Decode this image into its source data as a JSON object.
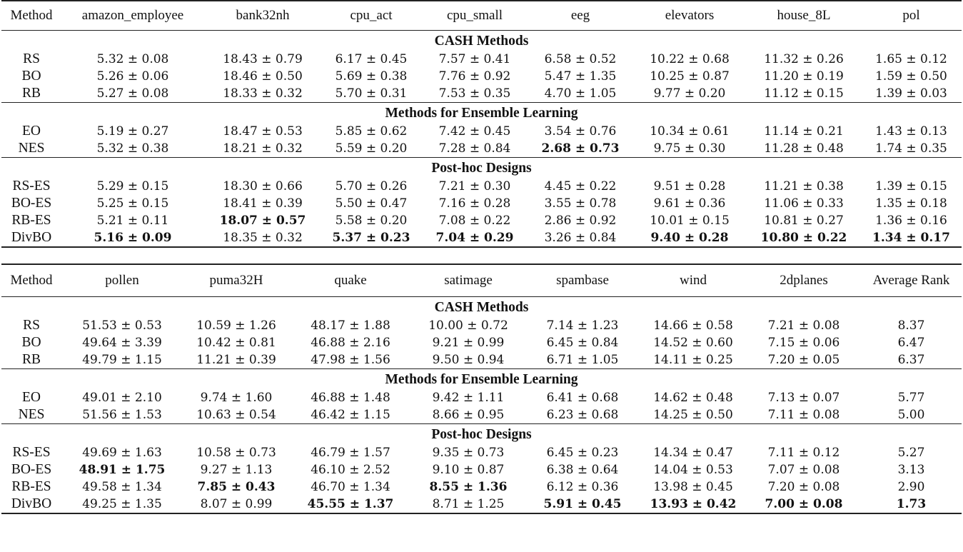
{
  "tables": [
    {
      "columns": [
        "Method",
        "amazon_employee",
        "bank32nh",
        "cpu_act",
        "cpu_small",
        "eeg",
        "elevators",
        "house_8L",
        "pol"
      ],
      "sections": [
        {
          "title": "CASH Methods",
          "rows": [
            {
              "method": "RS",
              "cells": [
                {
                  "v": "5.32 ± 0.08"
                },
                {
                  "v": "18.43 ± 0.79"
                },
                {
                  "v": "6.17 ± 0.45"
                },
                {
                  "v": "7.57 ± 0.41"
                },
                {
                  "v": "6.58 ± 0.52"
                },
                {
                  "v": "10.22 ± 0.68"
                },
                {
                  "v": "11.32 ± 0.26"
                },
                {
                  "v": "1.65 ± 0.12"
                }
              ]
            },
            {
              "method": "BO",
              "cells": [
                {
                  "v": "5.26 ± 0.06"
                },
                {
                  "v": "18.46 ± 0.50"
                },
                {
                  "v": "5.69 ± 0.38"
                },
                {
                  "v": "7.76 ± 0.92"
                },
                {
                  "v": "5.47 ± 1.35"
                },
                {
                  "v": "10.25 ± 0.87"
                },
                {
                  "v": "11.20 ± 0.19"
                },
                {
                  "v": "1.59 ± 0.50"
                }
              ]
            },
            {
              "method": "RB",
              "cells": [
                {
                  "v": "5.27 ± 0.08"
                },
                {
                  "v": "18.33 ± 0.32"
                },
                {
                  "v": "5.70 ± 0.31"
                },
                {
                  "v": "7.53 ± 0.35"
                },
                {
                  "v": "4.70 ± 1.05"
                },
                {
                  "v": "9.77 ± 0.20"
                },
                {
                  "v": "11.12 ± 0.15"
                },
                {
                  "v": "1.39 ± 0.03"
                }
              ]
            }
          ]
        },
        {
          "title": "Methods for Ensemble Learning",
          "rows": [
            {
              "method": "EO",
              "cells": [
                {
                  "v": "5.19 ± 0.27"
                },
                {
                  "v": "18.47 ± 0.53"
                },
                {
                  "v": "5.85 ± 0.62"
                },
                {
                  "v": "7.42 ± 0.45"
                },
                {
                  "v": "3.54 ± 0.76"
                },
                {
                  "v": "10.34 ± 0.61"
                },
                {
                  "v": "11.14 ± 0.21"
                },
                {
                  "v": "1.43 ± 0.13"
                }
              ]
            },
            {
              "method": "NES",
              "cells": [
                {
                  "v": "5.32 ± 0.38"
                },
                {
                  "v": "18.21 ± 0.32"
                },
                {
                  "v": "5.59 ± 0.20"
                },
                {
                  "v": "7.28 ± 0.84"
                },
                {
                  "v": "2.68 ± 0.73",
                  "bold": true
                },
                {
                  "v": "9.75 ± 0.30"
                },
                {
                  "v": "11.28 ± 0.48"
                },
                {
                  "v": "1.74 ± 0.35"
                }
              ]
            }
          ]
        },
        {
          "title": "Post-hoc Designs",
          "rows": [
            {
              "method": "RS-ES",
              "cells": [
                {
                  "v": "5.29 ± 0.15"
                },
                {
                  "v": "18.30 ± 0.66"
                },
                {
                  "v": "5.70 ± 0.26"
                },
                {
                  "v": "7.21 ± 0.30"
                },
                {
                  "v": "4.45 ± 0.22"
                },
                {
                  "v": "9.51 ± 0.28"
                },
                {
                  "v": "11.21 ± 0.38"
                },
                {
                  "v": "1.39 ± 0.15"
                }
              ]
            },
            {
              "method": "BO-ES",
              "cells": [
                {
                  "v": "5.25 ± 0.15"
                },
                {
                  "v": "18.41 ± 0.39"
                },
                {
                  "v": "5.50 ± 0.47"
                },
                {
                  "v": "7.16 ± 0.28"
                },
                {
                  "v": "3.55 ± 0.78"
                },
                {
                  "v": "9.61 ± 0.36"
                },
                {
                  "v": "11.06 ± 0.33"
                },
                {
                  "v": "1.35 ± 0.18"
                }
              ]
            },
            {
              "method": "RB-ES",
              "cells": [
                {
                  "v": "5.21 ± 0.11"
                },
                {
                  "v": "18.07 ± 0.57",
                  "bold": true
                },
                {
                  "v": "5.58 ± 0.20"
                },
                {
                  "v": "7.08 ± 0.22"
                },
                {
                  "v": "2.86 ± 0.92"
                },
                {
                  "v": "10.01 ± 0.15"
                },
                {
                  "v": "10.81 ± 0.27"
                },
                {
                  "v": "1.36 ± 0.16"
                }
              ]
            },
            {
              "method": "DivBO",
              "cells": [
                {
                  "v": "5.16 ± 0.09",
                  "bold": true
                },
                {
                  "v": "18.35 ± 0.32"
                },
                {
                  "v": "5.37 ± 0.23",
                  "bold": true
                },
                {
                  "v": "7.04 ± 0.29",
                  "bold": true
                },
                {
                  "v": "3.26 ± 0.84"
                },
                {
                  "v": "9.40 ± 0.28",
                  "bold": true
                },
                {
                  "v": "10.80 ± 0.22",
                  "bold": true
                },
                {
                  "v": "1.34 ± 0.17",
                  "bold": true
                }
              ]
            }
          ]
        }
      ]
    },
    {
      "columns": [
        "Method",
        "pollen",
        "puma32H",
        "quake",
        "satimage",
        "spambase",
        "wind",
        "2dplanes",
        "Average Rank"
      ],
      "sections": [
        {
          "title": "CASH Methods",
          "rows": [
            {
              "method": "RS",
              "cells": [
                {
                  "v": "51.53 ± 0.53"
                },
                {
                  "v": "10.59 ± 1.26"
                },
                {
                  "v": "48.17 ± 1.88"
                },
                {
                  "v": "10.00 ± 0.72"
                },
                {
                  "v": "7.14 ± 1.23"
                },
                {
                  "v": "14.66 ± 0.58"
                },
                {
                  "v": "7.21 ± 0.08"
                },
                {
                  "v": "8.37"
                }
              ]
            },
            {
              "method": "BO",
              "cells": [
                {
                  "v": "49.64 ± 3.39"
                },
                {
                  "v": "10.42 ± 0.81"
                },
                {
                  "v": "46.88 ± 2.16"
                },
                {
                  "v": "9.21 ± 0.99"
                },
                {
                  "v": "6.45 ± 0.84"
                },
                {
                  "v": "14.52 ± 0.60"
                },
                {
                  "v": "7.15 ± 0.06"
                },
                {
                  "v": "6.47"
                }
              ]
            },
            {
              "method": "RB",
              "cells": [
                {
                  "v": "49.79 ± 1.15"
                },
                {
                  "v": "11.21 ± 0.39"
                },
                {
                  "v": "47.98 ± 1.56"
                },
                {
                  "v": "9.50 ± 0.94"
                },
                {
                  "v": "6.71 ± 1.05"
                },
                {
                  "v": "14.11 ± 0.25"
                },
                {
                  "v": "7.20 ± 0.05"
                },
                {
                  "v": "6.37"
                }
              ]
            }
          ]
        },
        {
          "title": "Methods for Ensemble Learning",
          "rows": [
            {
              "method": "EO",
              "cells": [
                {
                  "v": "49.01 ± 2.10"
                },
                {
                  "v": "9.74 ± 1.60"
                },
                {
                  "v": "46.88 ± 1.48"
                },
                {
                  "v": "9.42 ± 1.11"
                },
                {
                  "v": "6.41 ± 0.68"
                },
                {
                  "v": "14.62 ± 0.48"
                },
                {
                  "v": "7.13 ± 0.07"
                },
                {
                  "v": "5.77"
                }
              ]
            },
            {
              "method": "NES",
              "cells": [
                {
                  "v": "51.56 ± 1.53"
                },
                {
                  "v": "10.63 ± 0.54"
                },
                {
                  "v": "46.42 ± 1.15"
                },
                {
                  "v": "8.66 ± 0.95"
                },
                {
                  "v": "6.23 ± 0.68"
                },
                {
                  "v": "14.25 ± 0.50"
                },
                {
                  "v": "7.11 ± 0.08"
                },
                {
                  "v": "5.00"
                }
              ]
            }
          ]
        },
        {
          "title": "Post-hoc Designs",
          "rows": [
            {
              "method": "RS-ES",
              "cells": [
                {
                  "v": "49.69 ± 1.63"
                },
                {
                  "v": "10.58 ± 0.73"
                },
                {
                  "v": "46.79 ± 1.57"
                },
                {
                  "v": "9.35 ± 0.73"
                },
                {
                  "v": "6.45 ± 0.23"
                },
                {
                  "v": "14.34 ± 0.47"
                },
                {
                  "v": "7.11 ± 0.12"
                },
                {
                  "v": "5.27"
                }
              ]
            },
            {
              "method": "BO-ES",
              "cells": [
                {
                  "v": "48.91 ± 1.75",
                  "bold": true
                },
                {
                  "v": "9.27 ± 1.13"
                },
                {
                  "v": "46.10 ± 2.52"
                },
                {
                  "v": "9.10 ± 0.87"
                },
                {
                  "v": "6.38 ± 0.64"
                },
                {
                  "v": "14.04 ± 0.53"
                },
                {
                  "v": "7.07 ± 0.08"
                },
                {
                  "v": "3.13"
                }
              ]
            },
            {
              "method": "RB-ES",
              "cells": [
                {
                  "v": "49.58 ± 1.34"
                },
                {
                  "v": "7.85 ± 0.43",
                  "bold": true
                },
                {
                  "v": "46.70 ± 1.34"
                },
                {
                  "v": "8.55 ± 1.36",
                  "bold": true
                },
                {
                  "v": "6.12 ± 0.36"
                },
                {
                  "v": "13.98 ± 0.45"
                },
                {
                  "v": "7.20 ± 0.08"
                },
                {
                  "v": "2.90"
                }
              ]
            },
            {
              "method": "DivBO",
              "cells": [
                {
                  "v": "49.25 ± 1.35"
                },
                {
                  "v": "8.07 ± 0.99"
                },
                {
                  "v": "45.55 ± 1.37",
                  "bold": true
                },
                {
                  "v": "8.71 ± 1.25"
                },
                {
                  "v": "5.91 ± 0.45",
                  "bold": true
                },
                {
                  "v": "13.93 ± 0.42",
                  "bold": true
                },
                {
                  "v": "7.00 ± 0.08",
                  "bold": true
                },
                {
                  "v": "1.73",
                  "bold": true
                }
              ]
            }
          ]
        }
      ]
    }
  ]
}
